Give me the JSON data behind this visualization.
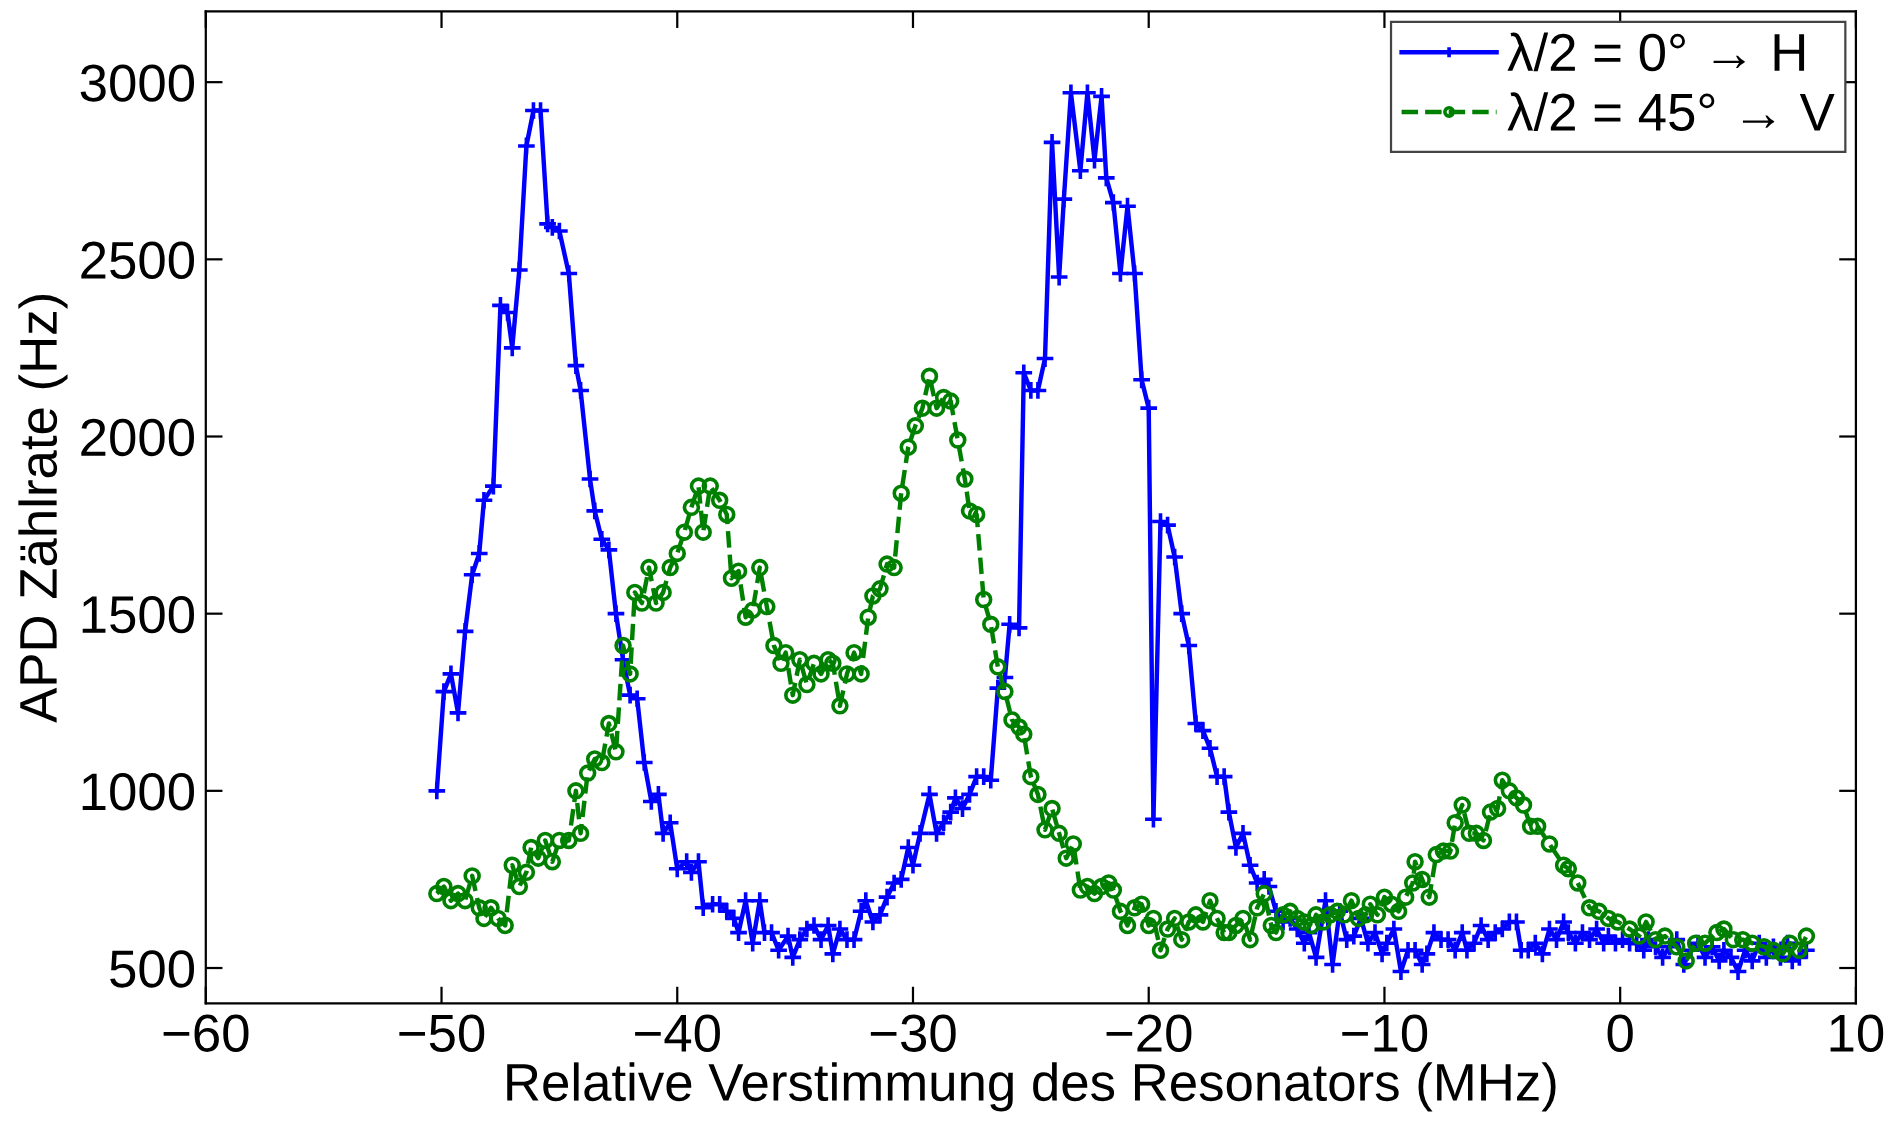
{
  "chart_data": {
    "type": "line",
    "xlabel": "Relative Verstimmung des Resonators (MHz)",
    "ylabel": "APD Zählrate (Hz)",
    "xlim": [
      -60,
      10
    ],
    "xticks": [
      -60,
      -50,
      -40,
      -30,
      -20,
      -10,
      0,
      10
    ],
    "ylim": [
      400,
      3200
    ],
    "yticks": [
      500,
      1000,
      1500,
      2000,
      2500,
      3000
    ],
    "grid": false,
    "legend": "top right",
    "series": [
      {
        "name": "λ/2 = 0° → H",
        "color": "#0000ff",
        "marker": "cross",
        "line_style": "solid",
        "x": [
          -50.2,
          -49.9,
          -49.6,
          -49.3,
          -49.0,
          -48.7,
          -48.4,
          -48.2,
          -47.8,
          -47.5,
          -47.2,
          -47.0,
          -46.7,
          -46.4,
          -46.1,
          -45.8,
          -45.5,
          -45.3,
          -45.0,
          -44.6,
          -44.3,
          -44.1,
          -43.7,
          -43.5,
          -43.2,
          -42.9,
          -42.6,
          -42.3,
          -42.0,
          -41.7,
          -41.4,
          -41.1,
          -40.8,
          -40.6,
          -40.3,
          -40.0,
          -39.6,
          -39.4,
          -39.1,
          -38.9,
          -38.5,
          -38.2,
          -37.9,
          -37.6,
          -37.4,
          -37.1,
          -36.8,
          -36.5,
          -36.3,
          -36.0,
          -35.7,
          -35.3,
          -35.1,
          -34.8,
          -34.5,
          -34.2,
          -33.9,
          -33.6,
          -33.4,
          -33.1,
          -32.8,
          -32.5,
          -32.2,
          -32.0,
          -31.7,
          -31.4,
          -31.1,
          -30.8,
          -30.5,
          -30.2,
          -30.0,
          -29.7,
          -29.3,
          -29.0,
          -28.7,
          -28.4,
          -28.2,
          -27.9,
          -27.6,
          -27.3,
          -27.0,
          -26.7,
          -26.4,
          -26.1,
          -25.9,
          -25.5,
          -25.3,
          -25.0,
          -24.7,
          -24.4,
          -24.1,
          -23.8,
          -23.6,
          -23.3,
          -22.9,
          -22.6,
          -22.3,
          -22.0,
          -21.8,
          -21.5,
          -21.2,
          -20.9,
          -20.6,
          -20.3,
          -20.0,
          -19.8,
          -19.5,
          -19.2,
          -18.9,
          -18.6,
          -18.3,
          -18.0,
          -17.7,
          -17.4,
          -17.1,
          -16.8,
          -16.6,
          -16.3,
          -16.0,
          -15.7,
          -15.4,
          -15.1,
          -14.9,
          -14.6,
          -14.3,
          -14.0,
          -13.7,
          -13.4,
          -13.2,
          -12.9,
          -12.5,
          -12.2,
          -11.9,
          -11.6,
          -11.3,
          -11.0,
          -10.7,
          -10.4,
          -10.1,
          -9.9,
          -9.6,
          -9.3,
          -9.0,
          -8.7,
          -8.4,
          -8.2,
          -7.9,
          -7.6,
          -7.3,
          -7.0,
          -6.7,
          -6.5,
          -6.2,
          -5.9,
          -5.6,
          -5.3,
          -5.0,
          -4.7,
          -4.4,
          -4.2,
          -3.9,
          -3.6,
          -3.3,
          -3.0,
          -2.7,
          -2.4,
          -2.2,
          -1.9,
          -1.6,
          -1.3,
          -1.0,
          -0.7,
          -0.5,
          -0.2,
          0.1,
          0.4,
          0.7,
          1.0,
          1.2,
          1.5,
          1.8,
          2.1,
          2.4,
          2.7,
          3.0,
          3.3,
          3.6,
          3.9,
          4.2,
          4.4,
          4.7,
          5.0,
          5.3,
          5.6,
          5.9,
          6.2,
          6.5,
          6.8,
          7.1,
          7.3,
          7.6,
          7.9
        ],
        "values": [
          1000,
          1280,
          1330,
          1220,
          1450,
          1610,
          1670,
          1820,
          1860,
          2370,
          2350,
          2250,
          2470,
          2820,
          2920,
          2920,
          2600,
          2590,
          2580,
          2460,
          2200,
          2130,
          1880,
          1790,
          1710,
          1680,
          1500,
          1370,
          1270,
          1260,
          1080,
          970,
          990,
          880,
          910,
          780,
          800,
          770,
          800,
          670,
          680,
          680,
          660,
          640,
          600,
          690,
          570,
          690,
          600,
          600,
          550,
          590,
          530,
          580,
          610,
          620,
          580,
          620,
          540,
          610,
          580,
          580,
          660,
          690,
          630,
          650,
          700,
          740,
          750,
          840,
          790,
          880,
          990,
          880,
          910,
          940,
          980,
          950,
          990,
          1040,
          1040,
          1030,
          1290,
          1320,
          1470,
          1460,
          2180,
          2130,
          2130,
          2220,
          2830,
          2450,
          2670,
          2970,
          2750,
          2970,
          2780,
          2960,
          2730,
          2660,
          2460,
          2650,
          2460,
          2160,
          2080,
          920,
          1760,
          1750,
          1660,
          1500,
          1410,
          1190,
          1170,
          1120,
          1040,
          1040,
          940,
          840,
          880,
          790,
          740,
          750,
          730,
          660,
          630,
          640,
          610,
          570,
          600,
          530,
          690,
          510,
          660,
          580,
          590,
          640,
          570,
          600,
          540,
          570,
          610,
          490,
          550,
          550,
          510,
          540,
          600,
          580,
          580,
          550,
          600,
          550,
          570,
          620,
          580,
          600,
          610,
          630,
          630,
          550,
          550,
          570,
          540,
          610,
          580,
          630,
          600,
          570,
          600,
          580,
          610,
          570,
          590,
          570,
          580,
          570,
          570,
          550,
          580,
          560,
          530,
          560,
          580,
          510,
          550,
          570,
          530,
          560,
          520,
          550,
          530,
          490,
          550,
          520,
          570,
          530,
          560,
          530,
          570,
          520,
          530,
          550
        ]
      },
      {
        "name": "λ/2 = 45° → V",
        "color": "#008000",
        "marker": "circle",
        "line_style": "dashed",
        "x": [
          -50.2,
          -49.9,
          -49.6,
          -49.3,
          -49.0,
          -48.7,
          -48.4,
          -48.2,
          -47.9,
          -47.6,
          -47.3,
          -47.0,
          -46.7,
          -46.4,
          -46.2,
          -45.9,
          -45.6,
          -45.3,
          -45.0,
          -44.6,
          -44.3,
          -44.1,
          -43.8,
          -43.5,
          -43.2,
          -42.9,
          -42.6,
          -42.3,
          -42.0,
          -41.8,
          -41.5,
          -41.2,
          -40.9,
          -40.6,
          -40.3,
          -40.0,
          -39.7,
          -39.4,
          -39.1,
          -38.9,
          -38.6,
          -38.2,
          -37.9,
          -37.7,
          -37.4,
          -37.1,
          -36.8,
          -36.5,
          -36.2,
          -35.9,
          -35.6,
          -35.4,
          -35.1,
          -34.8,
          -34.5,
          -34.2,
          -33.9,
          -33.6,
          -33.4,
          -33.1,
          -32.8,
          -32.5,
          -32.2,
          -31.9,
          -31.7,
          -31.4,
          -31.1,
          -30.8,
          -30.5,
          -30.2,
          -29.9,
          -29.6,
          -29.3,
          -29.0,
          -28.7,
          -28.4,
          -28.1,
          -27.8,
          -27.6,
          -27.3,
          -27.0,
          -26.7,
          -26.4,
          -26.1,
          -25.8,
          -25.5,
          -25.3,
          -25.0,
          -24.7,
          -24.4,
          -24.1,
          -23.8,
          -23.5,
          -23.2,
          -22.9,
          -22.6,
          -22.3,
          -22.0,
          -21.7,
          -21.5,
          -21.2,
          -20.9,
          -20.6,
          -20.3,
          -20.0,
          -19.8,
          -19.5,
          -19.2,
          -18.9,
          -18.6,
          -18.3,
          -18.0,
          -17.7,
          -17.4,
          -17.1,
          -16.8,
          -16.6,
          -16.3,
          -16.0,
          -15.7,
          -15.4,
          -15.1,
          -14.8,
          -14.6,
          -14.3,
          -14.0,
          -13.7,
          -13.4,
          -13.1,
          -12.9,
          -12.6,
          -12.3,
          -12.0,
          -11.7,
          -11.4,
          -11.1,
          -10.8,
          -10.6,
          -10.3,
          -10.0,
          -9.7,
          -9.4,
          -9.1,
          -8.8,
          -8.7,
          -8.4,
          -8.1,
          -7.8,
          -7.5,
          -7.2,
          -7.0,
          -6.7,
          -6.4,
          -6.1,
          -5.8,
          -5.5,
          -5.2,
          -5.0,
          -4.7,
          -4.4,
          -4.1,
          -3.8,
          -3.5,
          -3.0,
          -2.4,
          -2.2,
          -1.8,
          -1.3,
          -0.9,
          -0.5,
          -0.1,
          0.4,
          0.8,
          1.1,
          1.5,
          1.9,
          2.4,
          2.8,
          3.2,
          3.6,
          4.1,
          4.4,
          4.8,
          5.2,
          5.6,
          6.1,
          6.5,
          6.9,
          7.2,
          7.6,
          7.9
        ],
        "values": [
          710,
          730,
          690,
          710,
          690,
          760,
          670,
          640,
          670,
          640,
          620,
          790,
          730,
          770,
          840,
          810,
          860,
          800,
          860,
          860,
          1000,
          880,
          1050,
          1090,
          1080,
          1190,
          1110,
          1410,
          1330,
          1560,
          1530,
          1630,
          1530,
          1560,
          1630,
          1670,
          1730,
          1800,
          1860,
          1730,
          1860,
          1820,
          1780,
          1600,
          1620,
          1490,
          1510,
          1630,
          1520,
          1410,
          1360,
          1390,
          1270,
          1370,
          1300,
          1360,
          1330,
          1370,
          1360,
          1240,
          1330,
          1390,
          1330,
          1490,
          1550,
          1570,
          1640,
          1630,
          1840,
          1970,
          2030,
          2080,
          2170,
          2080,
          2110,
          2100,
          1990,
          1880,
          1790,
          1780,
          1540,
          1470,
          1350,
          1280,
          1200,
          1180,
          1160,
          1040,
          990,
          890,
          950,
          880,
          810,
          850,
          720,
          730,
          710,
          730,
          740,
          720,
          660,
          620,
          670,
          680,
          620,
          640,
          550,
          610,
          640,
          580,
          630,
          650,
          630,
          690,
          640,
          600,
          600,
          620,
          640,
          580,
          670,
          710,
          620,
          600,
          650,
          660,
          640,
          630,
          620,
          650,
          630,
          650,
          660,
          650,
          690,
          640,
          650,
          680,
          650,
          700,
          680,
          660,
          700,
          740,
          800,
          750,
          700,
          820,
          830,
          830,
          910,
          960,
          880,
          880,
          860,
          940,
          950,
          1030,
          1000,
          980,
          960,
          900,
          900,
          850,
          790,
          780,
          740,
          670,
          660,
          640,
          630,
          610,
          590,
          630,
          580,
          590,
          560,
          520,
          570,
          570,
          600,
          610,
          580,
          580,
          570,
          560,
          550,
          540,
          570,
          550,
          590
        ]
      }
    ]
  }
}
